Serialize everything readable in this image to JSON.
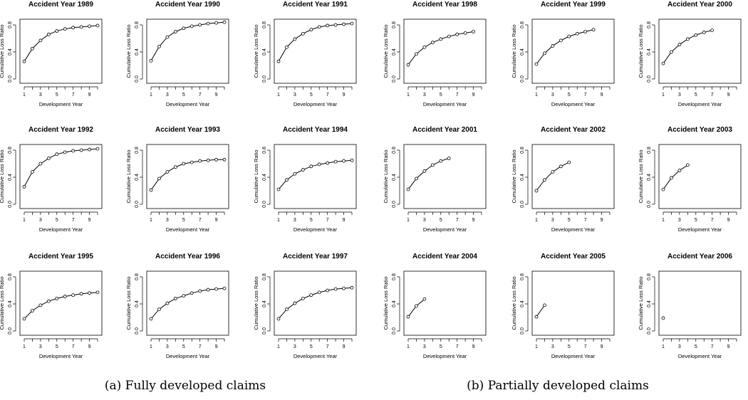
{
  "chart_data": [
    {
      "type": "line",
      "title": "Accident Year 1989",
      "xlabel": "Development Year",
      "ylabel": "Cumulative Loss Ratio",
      "x_ticks": [
        "1",
        "3",
        "5",
        "7",
        "9"
      ],
      "y_ticks": [
        "0.0",
        "0.4",
        "0.8"
      ],
      "xlim": [
        1,
        10
      ],
      "ylim": [
        0,
        0.8
      ],
      "x": [
        1,
        2,
        3,
        4,
        5,
        6,
        7,
        8,
        9,
        10
      ],
      "values": [
        0.26,
        0.45,
        0.57,
        0.66,
        0.71,
        0.74,
        0.76,
        0.77,
        0.78,
        0.79
      ]
    },
    {
      "type": "line",
      "title": "Accident Year 1990",
      "xlabel": "Development Year",
      "ylabel": "Cumulative Loss Ratio",
      "x_ticks": [
        "1",
        "3",
        "5",
        "7",
        "9"
      ],
      "y_ticks": [
        "0.0",
        "0.4",
        "0.8"
      ],
      "xlim": [
        1,
        10
      ],
      "ylim": [
        0,
        0.8
      ],
      "x": [
        1,
        2,
        3,
        4,
        5,
        6,
        7,
        8,
        9,
        10
      ],
      "values": [
        0.27,
        0.48,
        0.62,
        0.7,
        0.75,
        0.78,
        0.8,
        0.82,
        0.83,
        0.84
      ]
    },
    {
      "type": "line",
      "title": "Accident Year 1991",
      "xlabel": "Development Year",
      "ylabel": "Cumulative Loss Ratio",
      "x_ticks": [
        "1",
        "3",
        "5",
        "7",
        "9"
      ],
      "y_ticks": [
        "0.0",
        "0.4",
        "0.8"
      ],
      "xlim": [
        1,
        10
      ],
      "ylim": [
        0,
        0.8
      ],
      "x": [
        1,
        2,
        3,
        4,
        5,
        6,
        7,
        8,
        9,
        10
      ],
      "values": [
        0.26,
        0.47,
        0.59,
        0.67,
        0.73,
        0.77,
        0.79,
        0.8,
        0.81,
        0.82
      ]
    },
    {
      "type": "line",
      "title": "Accident Year 1992",
      "xlabel": "Development Year",
      "ylabel": "Cumulative Loss Ratio",
      "x_ticks": [
        "1",
        "3",
        "5",
        "7",
        "9"
      ],
      "y_ticks": [
        "0.0",
        "0.4",
        "0.8"
      ],
      "xlim": [
        1,
        10
      ],
      "ylim": [
        0,
        0.8
      ],
      "x": [
        1,
        2,
        3,
        4,
        5,
        6,
        7,
        8,
        9,
        10
      ],
      "values": [
        0.26,
        0.48,
        0.6,
        0.68,
        0.74,
        0.77,
        0.79,
        0.8,
        0.81,
        0.82
      ]
    },
    {
      "type": "line",
      "title": "Accident Year 1993",
      "xlabel": "Development Year",
      "ylabel": "Cumulative Loss Ratio",
      "x_ticks": [
        "1",
        "3",
        "5",
        "7",
        "9"
      ],
      "y_ticks": [
        "0.0",
        "0.4",
        "0.8"
      ],
      "xlim": [
        1,
        10
      ],
      "ylim": [
        0,
        0.8
      ],
      "x": [
        1,
        2,
        3,
        4,
        5,
        6,
        7,
        8,
        9,
        10
      ],
      "values": [
        0.21,
        0.38,
        0.48,
        0.55,
        0.6,
        0.62,
        0.64,
        0.65,
        0.66,
        0.66
      ]
    },
    {
      "type": "line",
      "title": "Accident Year 1994",
      "xlabel": "Development Year",
      "ylabel": "Cumulative Loss Ratio",
      "x_ticks": [
        "1",
        "3",
        "5",
        "7",
        "9"
      ],
      "y_ticks": [
        "0.0",
        "0.4",
        "0.8"
      ],
      "xlim": [
        1,
        10
      ],
      "ylim": [
        0,
        0.8
      ],
      "x": [
        1,
        2,
        3,
        4,
        5,
        6,
        7,
        8,
        9,
        10
      ],
      "values": [
        0.22,
        0.36,
        0.45,
        0.51,
        0.56,
        0.59,
        0.61,
        0.63,
        0.64,
        0.65
      ]
    },
    {
      "type": "line",
      "title": "Accident Year 1995",
      "xlabel": "Development Year",
      "ylabel": "Cumulative Loss Ratio",
      "x_ticks": [
        "1",
        "3",
        "5",
        "7",
        "9"
      ],
      "y_ticks": [
        "0.0",
        "0.4",
        "0.8"
      ],
      "xlim": [
        1,
        10
      ],
      "ylim": [
        0,
        0.8
      ],
      "x": [
        1,
        2,
        3,
        4,
        5,
        6,
        7,
        8,
        9,
        10
      ],
      "values": [
        0.18,
        0.3,
        0.38,
        0.44,
        0.48,
        0.51,
        0.53,
        0.55,
        0.56,
        0.57
      ]
    },
    {
      "type": "line",
      "title": "Accident Year 1996",
      "xlabel": "Development Year",
      "ylabel": "Cumulative Loss Ratio",
      "x_ticks": [
        "1",
        "3",
        "5",
        "7",
        "9"
      ],
      "y_ticks": [
        "0.0",
        "0.4",
        "0.8"
      ],
      "xlim": [
        1,
        10
      ],
      "ylim": [
        0,
        0.8
      ],
      "x": [
        1,
        2,
        3,
        4,
        5,
        6,
        7,
        8,
        9,
        10
      ],
      "values": [
        0.18,
        0.32,
        0.41,
        0.48,
        0.52,
        0.56,
        0.59,
        0.61,
        0.62,
        0.63
      ]
    },
    {
      "type": "line",
      "title": "Accident Year 1997",
      "xlabel": "Development Year",
      "ylabel": "Cumulative Loss Ratio",
      "x_ticks": [
        "1",
        "3",
        "5",
        "7",
        "9"
      ],
      "y_ticks": [
        "0.0",
        "0.4",
        "0.8"
      ],
      "xlim": [
        1,
        10
      ],
      "ylim": [
        0,
        0.8
      ],
      "x": [
        1,
        2,
        3,
        4,
        5,
        6,
        7,
        8,
        9,
        10
      ],
      "values": [
        0.18,
        0.32,
        0.41,
        0.48,
        0.53,
        0.57,
        0.6,
        0.62,
        0.63,
        0.64
      ]
    },
    {
      "type": "line",
      "title": "Accident Year 1998",
      "xlabel": "Development Year",
      "ylabel": "Cumulative Loss Ratio",
      "x_ticks": [
        "1",
        "3",
        "5",
        "7",
        "9"
      ],
      "y_ticks": [
        "0.0",
        "0.4",
        "0.8"
      ],
      "xlim": [
        1,
        10
      ],
      "ylim": [
        0,
        0.8
      ],
      "x": [
        1,
        2,
        3,
        4,
        5,
        6,
        7,
        8,
        9
      ],
      "values": [
        0.21,
        0.37,
        0.47,
        0.54,
        0.59,
        0.63,
        0.66,
        0.68,
        0.7
      ]
    },
    {
      "type": "line",
      "title": "Accident Year 1999",
      "xlabel": "Development Year",
      "ylabel": "Cumulative Loss Ratio",
      "x_ticks": [
        "1",
        "3",
        "5",
        "7",
        "9"
      ],
      "y_ticks": [
        "0.0",
        "0.4",
        "0.8"
      ],
      "xlim": [
        1,
        10
      ],
      "ylim": [
        0,
        0.8
      ],
      "x": [
        1,
        2,
        3,
        4,
        5,
        6,
        7,
        8
      ],
      "values": [
        0.22,
        0.38,
        0.49,
        0.57,
        0.63,
        0.67,
        0.7,
        0.73
      ]
    },
    {
      "type": "line",
      "title": "Accident Year 2000",
      "xlabel": "Development Year",
      "ylabel": "Cumulative Loss Ratio",
      "x_ticks": [
        "1",
        "3",
        "5",
        "7",
        "9"
      ],
      "y_ticks": [
        "0.0",
        "0.4",
        "0.8"
      ],
      "xlim": [
        1,
        10
      ],
      "ylim": [
        0,
        0.8
      ],
      "x": [
        1,
        2,
        3,
        4,
        5,
        6,
        7
      ],
      "values": [
        0.23,
        0.4,
        0.51,
        0.59,
        0.65,
        0.69,
        0.72
      ]
    },
    {
      "type": "line",
      "title": "Accident Year 2001",
      "xlabel": "Development Year",
      "ylabel": "Cumulative Loss Ratio",
      "x_ticks": [
        "1",
        "3",
        "5",
        "7",
        "9"
      ],
      "y_ticks": [
        "0.0",
        "0.4",
        "0.8"
      ],
      "xlim": [
        1,
        10
      ],
      "ylim": [
        0,
        0.8
      ],
      "x": [
        1,
        2,
        3,
        4,
        5,
        6
      ],
      "values": [
        0.22,
        0.38,
        0.49,
        0.58,
        0.64,
        0.68
      ]
    },
    {
      "type": "line",
      "title": "Accident Year 2002",
      "xlabel": "Development Year",
      "ylabel": "Cumulative Loss Ratio",
      "x_ticks": [
        "1",
        "3",
        "5",
        "7",
        "9"
      ],
      "y_ticks": [
        "0.0",
        "0.4",
        "0.8"
      ],
      "xlim": [
        1,
        10
      ],
      "ylim": [
        0,
        0.8
      ],
      "x": [
        1,
        2,
        3,
        4,
        5
      ],
      "values": [
        0.2,
        0.36,
        0.48,
        0.56,
        0.62
      ]
    },
    {
      "type": "line",
      "title": "Accident Year 2003",
      "xlabel": "Development Year",
      "ylabel": "Cumulative Loss Ratio",
      "x_ticks": [
        "1",
        "3",
        "5",
        "7",
        "9"
      ],
      "y_ticks": [
        "0.0",
        "0.4",
        "0.8"
      ],
      "xlim": [
        1,
        10
      ],
      "ylim": [
        0,
        0.8
      ],
      "x": [
        1,
        2,
        3,
        4
      ],
      "values": [
        0.22,
        0.39,
        0.5,
        0.58
      ]
    },
    {
      "type": "line",
      "title": "Accident Year 2004",
      "xlabel": "Development Year",
      "ylabel": "Cumulative Loss Ratio",
      "x_ticks": [
        "1",
        "3",
        "5",
        "7",
        "9"
      ],
      "y_ticks": [
        "0.0",
        "0.4",
        "0.8"
      ],
      "xlim": [
        1,
        10
      ],
      "ylim": [
        0,
        0.8
      ],
      "x": [
        1,
        2,
        3
      ],
      "values": [
        0.21,
        0.37,
        0.47
      ]
    },
    {
      "type": "line",
      "title": "Accident Year 2005",
      "xlabel": "Development Year",
      "ylabel": "Cumulative Loss Ratio",
      "x_ticks": [
        "1",
        "3",
        "5",
        "7",
        "9"
      ],
      "y_ticks": [
        "0.0",
        "0.4",
        "0.8"
      ],
      "xlim": [
        1,
        10
      ],
      "ylim": [
        0,
        0.8
      ],
      "x": [
        1,
        2
      ],
      "values": [
        0.21,
        0.38
      ]
    },
    {
      "type": "line",
      "title": "Accident Year 2006",
      "xlabel": "Development Year",
      "ylabel": "Cumulative Loss Ratio",
      "x_ticks": [
        "1",
        "3",
        "5",
        "7",
        "9"
      ],
      "y_ticks": [
        "0.0",
        "0.4",
        "0.8"
      ],
      "xlim": [
        1,
        10
      ],
      "ylim": [
        0,
        0.8
      ],
      "x": [
        1
      ],
      "values": [
        0.19
      ]
    }
  ],
  "captions": {
    "a": "(a)  Fully developed claims",
    "b": "(b)  Partially developed claims"
  }
}
